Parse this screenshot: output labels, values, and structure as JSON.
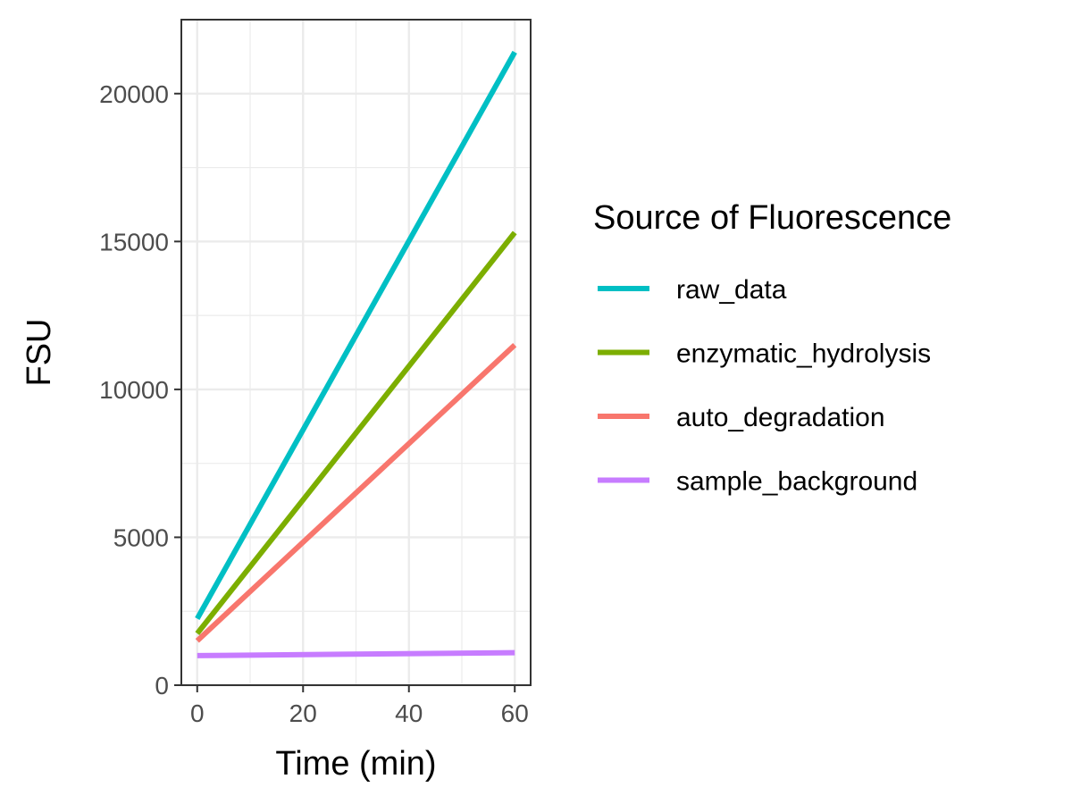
{
  "chart_data": {
    "type": "line",
    "xlabel": "Time (min)",
    "ylabel": "FSU",
    "xlim": [
      -3,
      63
    ],
    "ylim": [
      0,
      22500
    ],
    "x_ticks": [
      0,
      20,
      40,
      60
    ],
    "x_tick_labels": [
      "0",
      "20",
      "40",
      "60"
    ],
    "x_minor_ticks": [
      10,
      30,
      50
    ],
    "y_ticks": [
      0,
      5000,
      10000,
      15000,
      20000
    ],
    "y_tick_labels": [
      "0",
      "5000",
      "10000",
      "15000",
      "20000"
    ],
    "y_minor_ticks": [
      2500,
      7500,
      12500,
      17500
    ],
    "grid": true,
    "legend": {
      "title": "Source of Fluorescence",
      "position": "right"
    },
    "series": [
      {
        "name": "raw_data",
        "color": "#00BFC4",
        "x": [
          0,
          60
        ],
        "values": [
          2250,
          21400
        ]
      },
      {
        "name": "enzymatic_hydrolysis",
        "color": "#7CAE00",
        "x": [
          0,
          60
        ],
        "values": [
          1750,
          15300
        ]
      },
      {
        "name": "auto_degradation",
        "color": "#F8766D",
        "x": [
          0,
          60
        ],
        "values": [
          1500,
          11500
        ]
      },
      {
        "name": "sample_background",
        "color": "#C77CFF",
        "x": [
          0,
          60
        ],
        "values": [
          1000,
          1100
        ]
      }
    ]
  }
}
